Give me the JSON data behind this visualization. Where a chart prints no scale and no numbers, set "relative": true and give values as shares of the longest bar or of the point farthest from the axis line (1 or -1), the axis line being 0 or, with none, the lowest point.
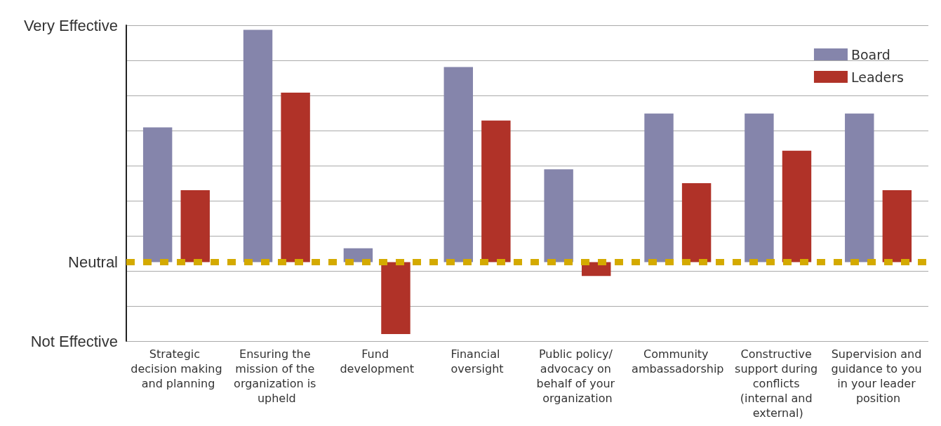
{
  "chart_data": {
    "type": "bar",
    "relative": true,
    "categories": [
      "Strategic decision making and planning",
      "Ensuring the mission of the organization is upheld",
      "Fund development",
      "Financial oversight",
      "Public policy/ advocacy on behalf of your organization",
      "Community ambassadorship",
      "Constructive support during conflicts (internal and external)",
      "Supervision and guidance to you in your leader position"
    ],
    "series": [
      {
        "name": "Board",
        "color": "#8585ab",
        "values": [
          0.58,
          1.0,
          0.06,
          0.84,
          0.4,
          0.64,
          0.64,
          0.64
        ]
      },
      {
        "name": "Leaders",
        "color": "#b03228",
        "values": [
          0.31,
          0.73,
          -0.31,
          0.61,
          -0.06,
          0.34,
          0.48,
          0.31
        ]
      }
    ],
    "annotations": [
      "Very Effective",
      "Neutral",
      "Not Effective"
    ],
    "ref_lines": [
      {
        "axis": "y",
        "value": 0,
        "label": null,
        "color": "#d4aa00",
        "line_style": "dashed"
      }
    ],
    "grid": "y",
    "legend": "top right"
  }
}
